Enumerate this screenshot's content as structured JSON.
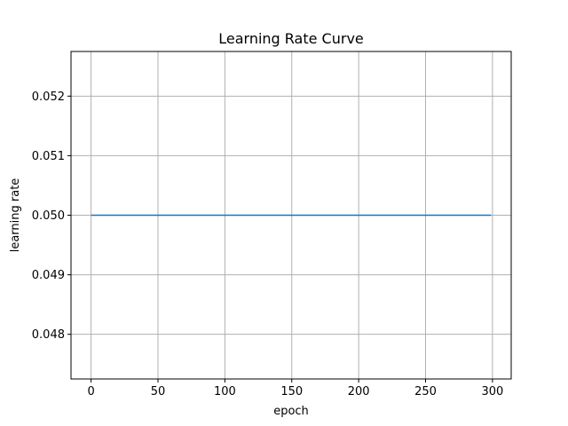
{
  "chart_data": {
    "type": "line",
    "title": "Learning Rate Curve",
    "xlabel": "epoch",
    "ylabel": "learning rate",
    "xlim": [
      -15,
      314
    ],
    "ylim": [
      0.04725,
      0.05275
    ],
    "xticks": [
      0,
      50,
      100,
      150,
      200,
      250,
      300
    ],
    "xtick_labels": [
      "0",
      "50",
      "100",
      "150",
      "200",
      "250",
      "300"
    ],
    "yticks": [
      0.048,
      0.049,
      0.05,
      0.051,
      0.052
    ],
    "ytick_labels": [
      "0.048",
      "0.049",
      "0.050",
      "0.051",
      "0.052"
    ],
    "grid": true,
    "series": [
      {
        "x": [
          0,
          299
        ],
        "values": [
          0.05,
          0.05
        ],
        "color": "#1f77b4"
      }
    ]
  }
}
